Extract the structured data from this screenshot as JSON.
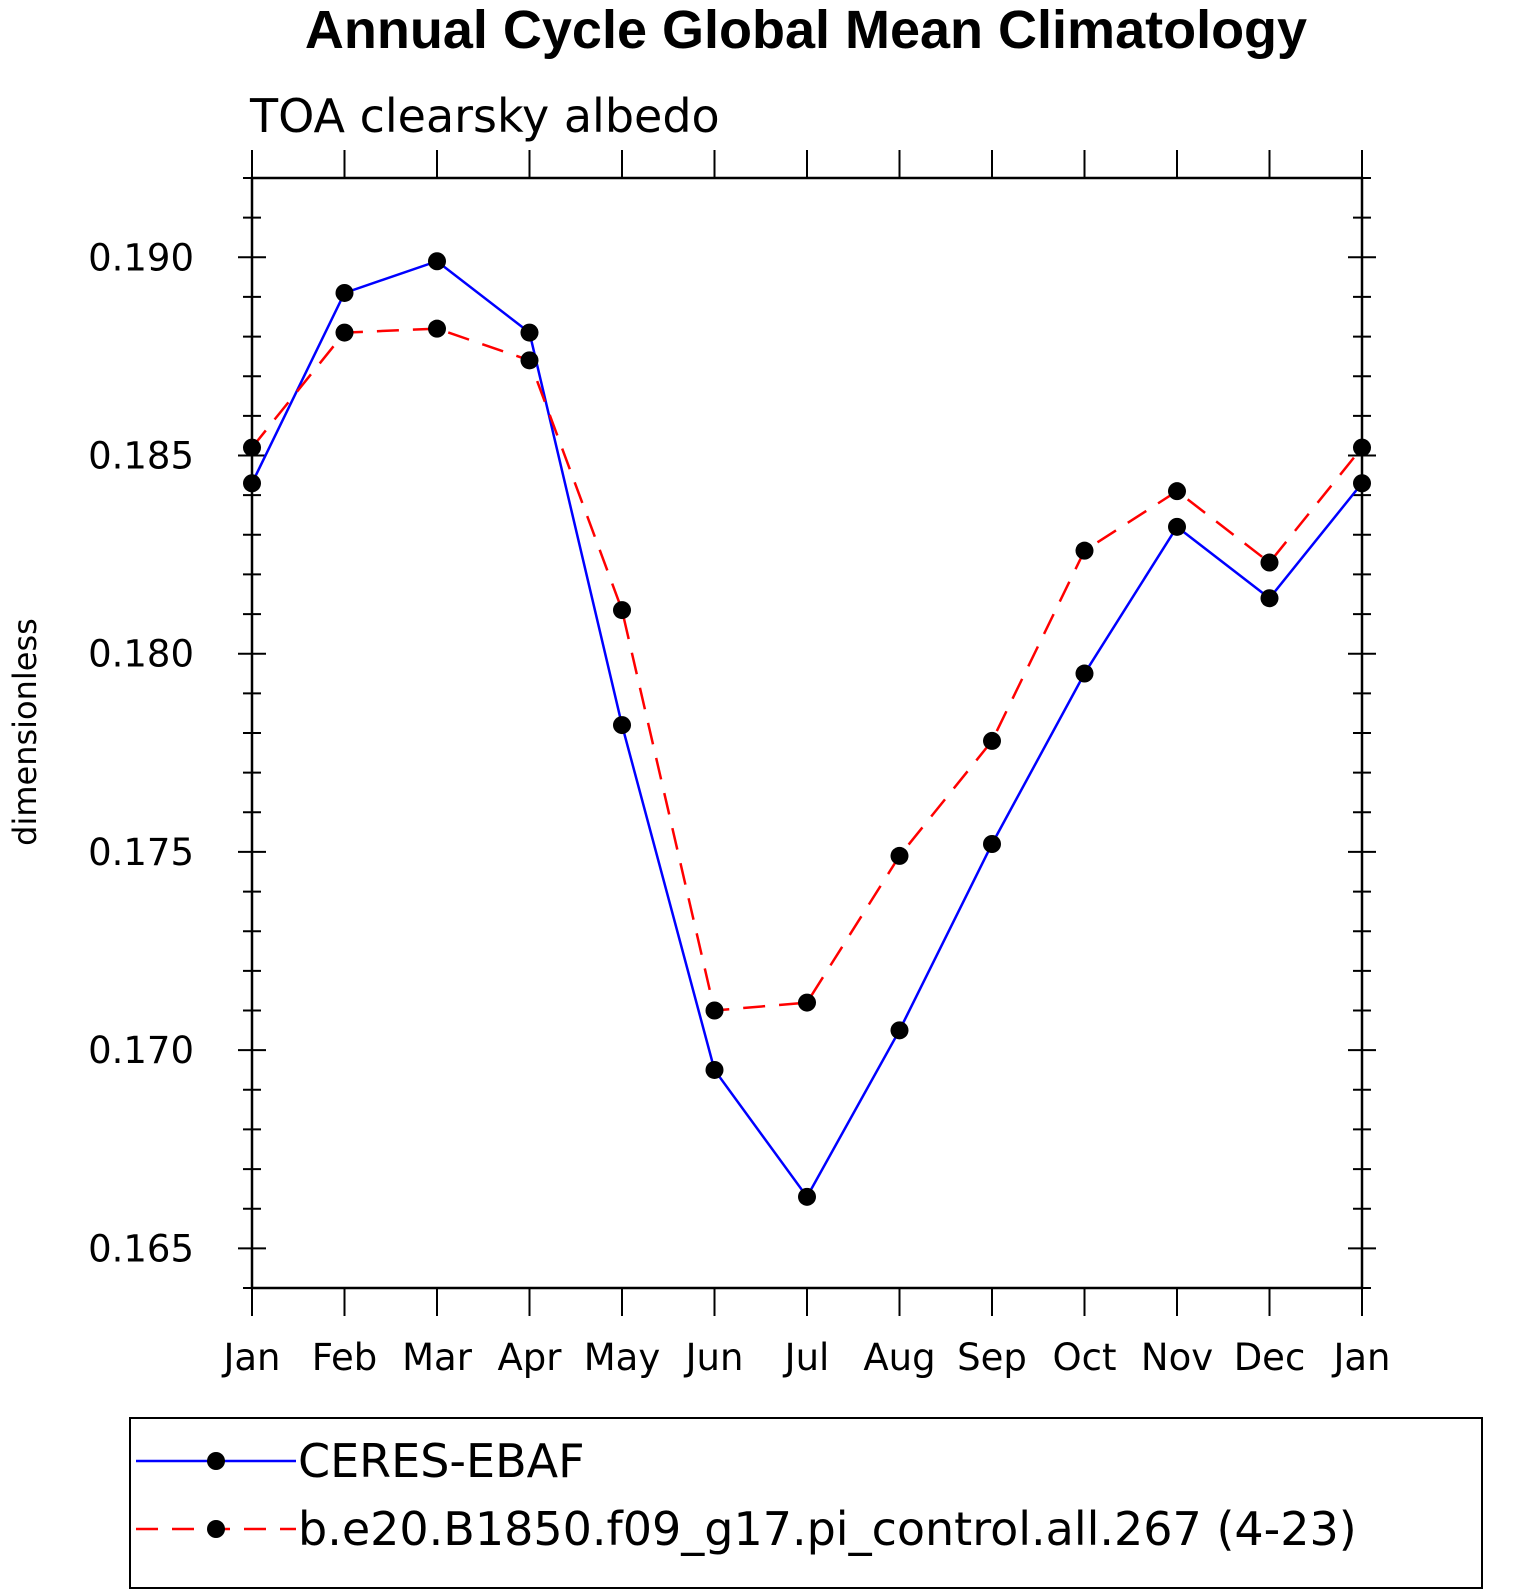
{
  "chart_data": {
    "type": "line",
    "title": "Annual Cycle Global Mean Climatology",
    "subtitle": "TOA clearsky albedo",
    "xlabel": "",
    "ylabel": "dimensionless",
    "categories": [
      "Jan",
      "Feb",
      "Mar",
      "Apr",
      "May",
      "Jun",
      "Jul",
      "Aug",
      "Sep",
      "Oct",
      "Nov",
      "Dec",
      "Jan"
    ],
    "ylim": [
      0.164,
      0.192
    ],
    "yticks": [
      0.165,
      0.17,
      0.175,
      0.18,
      0.185,
      0.19
    ],
    "ytick_labels": [
      "0.165",
      "0.170",
      "0.175",
      "0.180",
      "0.185",
      "0.190"
    ],
    "grid": false,
    "legend_position": "bottom",
    "series": [
      {
        "name": "CERES-EBAF",
        "color": "#0000ff",
        "dash": "solid",
        "marker": "circle",
        "values": [
          0.1843,
          0.1891,
          0.1899,
          0.1881,
          0.1782,
          0.1695,
          0.1663,
          0.1705,
          0.1752,
          0.1795,
          0.1832,
          0.1814,
          0.1843
        ]
      },
      {
        "name": "b.e20.B1850.f09_g17.pi_control.all.267 (4-23)",
        "color": "#ff0000",
        "dash": "dashed",
        "marker": "circle",
        "values": [
          0.1852,
          0.1881,
          0.1882,
          0.1874,
          0.1811,
          0.171,
          0.1712,
          0.1749,
          0.1778,
          0.1826,
          0.1841,
          0.1823,
          0.1852
        ]
      }
    ]
  }
}
